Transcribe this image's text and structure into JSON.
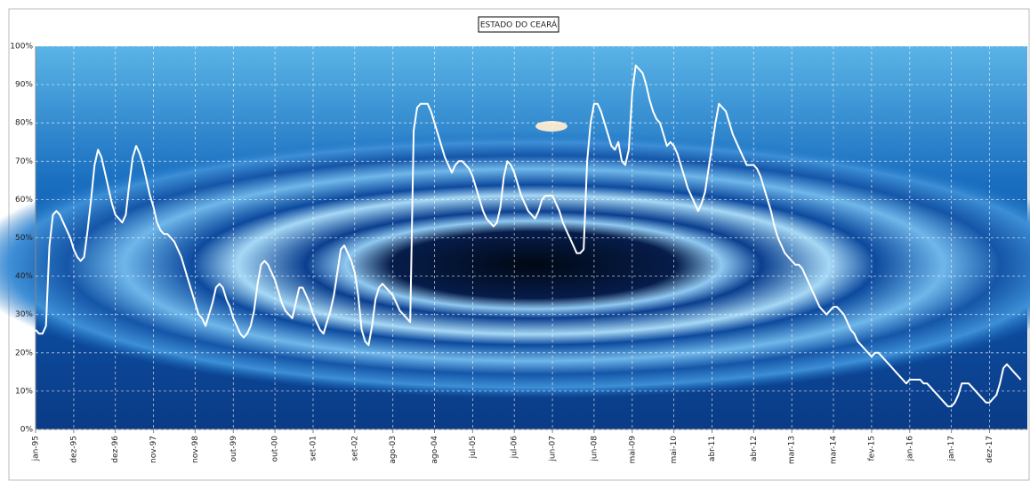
{
  "chart_data": {
    "type": "line",
    "title": "ESTADO DO CEARÁ",
    "categories": [
      "jan-95",
      null,
      null,
      null,
      null,
      null,
      null,
      null,
      null,
      null,
      null,
      "dez-95",
      null,
      null,
      null,
      null,
      null,
      null,
      null,
      null,
      null,
      null,
      null,
      "dez-96",
      null,
      null,
      null,
      null,
      null,
      null,
      null,
      null,
      null,
      null,
      "nov-97",
      null,
      null,
      null,
      null,
      null,
      null,
      null,
      null,
      null,
      null,
      null,
      "nov-98",
      null,
      null,
      null,
      null,
      null,
      null,
      null,
      null,
      null,
      null,
      "out-99",
      null,
      null,
      null,
      null,
      null,
      null,
      null,
      null,
      null,
      null,
      null,
      "out-00",
      null,
      null,
      null,
      null,
      null,
      null,
      null,
      null,
      null,
      null,
      "set-01",
      null,
      null,
      null,
      null,
      null,
      null,
      null,
      null,
      null,
      null,
      null,
      "set-02",
      null,
      null,
      null,
      null,
      null,
      null,
      null,
      null,
      null,
      null,
      "ago-03",
      null,
      null,
      null,
      null,
      null,
      null,
      null,
      null,
      null,
      null,
      null,
      "ago-04",
      null,
      null,
      null,
      null,
      null,
      null,
      null,
      null,
      null,
      null,
      "jul-05",
      null,
      null,
      null,
      null,
      null,
      null,
      null,
      null,
      null,
      null,
      null,
      "jul-06",
      null,
      null,
      null,
      null,
      null,
      null,
      null,
      null,
      null,
      null,
      "jun-07",
      null,
      null,
      null,
      null,
      null,
      null,
      null,
      null,
      null,
      null,
      null,
      "jun-08",
      null,
      null,
      null,
      null,
      null,
      null,
      null,
      null,
      null,
      null,
      "mai-09",
      null,
      null,
      null,
      null,
      null,
      null,
      null,
      null,
      null,
      null,
      null,
      "mai-10",
      null,
      null,
      null,
      null,
      null,
      null,
      null,
      null,
      null,
      null,
      "abr-11",
      null,
      null,
      null,
      null,
      null,
      null,
      null,
      null,
      null,
      null,
      null,
      "abr-12",
      null,
      null,
      null,
      null,
      null,
      null,
      null,
      null,
      null,
      null,
      "mar-13",
      null,
      null,
      null,
      null,
      null,
      null,
      null,
      null,
      null,
      null,
      null,
      "mar-14",
      null,
      null,
      null,
      null,
      null,
      null,
      null,
      null,
      null,
      null,
      "fev-15",
      null,
      null,
      null,
      null,
      null,
      null,
      null,
      null,
      null,
      null,
      "jan-16",
      null,
      null,
      null,
      null,
      null,
      null,
      null,
      null,
      null,
      null,
      null,
      "jan-17",
      null,
      null,
      null,
      null,
      null,
      null,
      null,
      null,
      null,
      null,
      "dez-17",
      null,
      null,
      null,
      null,
      null,
      null,
      null,
      null,
      null
    ],
    "values": [
      26,
      25,
      25,
      27,
      48,
      56,
      57,
      56,
      54,
      52,
      50,
      47,
      45,
      44,
      45,
      52,
      60,
      69,
      73,
      71,
      67,
      63,
      59,
      56,
      55,
      54,
      56,
      64,
      71,
      74,
      72,
      69,
      65,
      61,
      58,
      54,
      52,
      51,
      51,
      50,
      49,
      47,
      45,
      42,
      39,
      36,
      33,
      30,
      29,
      27,
      30,
      33,
      37,
      38,
      37,
      34,
      32,
      29,
      27,
      25,
      24,
      25,
      27,
      31,
      38,
      43,
      44,
      43,
      41,
      39,
      36,
      33,
      31,
      30,
      29,
      33,
      37,
      37,
      35,
      33,
      30,
      28,
      26,
      25,
      28,
      31,
      35,
      41,
      47,
      48,
      46,
      44,
      41,
      35,
      26,
      23,
      22,
      27,
      34,
      37,
      38,
      37,
      36,
      35,
      33,
      31,
      30,
      29,
      28,
      78,
      84,
      85,
      85,
      85,
      83,
      80,
      77,
      74,
      71,
      69,
      67,
      69,
      70,
      70,
      69,
      68,
      66,
      63,
      60,
      57,
      55,
      54,
      53,
      54,
      58,
      66,
      70,
      69,
      67,
      64,
      61,
      59,
      57,
      56,
      55,
      57,
      60,
      61,
      61,
      61,
      59,
      57,
      54,
      52,
      50,
      48,
      46,
      46,
      47,
      70,
      80,
      85,
      85,
      83,
      80,
      77,
      74,
      73,
      75,
      70,
      69,
      73,
      88,
      95,
      94,
      93,
      90,
      86,
      83,
      81,
      80,
      77,
      74,
      75,
      74,
      72,
      69,
      66,
      63,
      61,
      59,
      57,
      59,
      62,
      68,
      74,
      80,
      85,
      84,
      83,
      80,
      77,
      75,
      73,
      71,
      69,
      69,
      69,
      68,
      66,
      63,
      60,
      57,
      53,
      50,
      48,
      46,
      45,
      44,
      43,
      43,
      42,
      40,
      38,
      36,
      34,
      32,
      31,
      30,
      31,
      32,
      32,
      31,
      30,
      28,
      26,
      25,
      23,
      22,
      21,
      20,
      19,
      20,
      20,
      19,
      18,
      17,
      16,
      15,
      14,
      13,
      12,
      13,
      13,
      13,
      13,
      12,
      12,
      11,
      10,
      9,
      8,
      7,
      6,
      6,
      7,
      9,
      12,
      12,
      12,
      11,
      10,
      9,
      8,
      7,
      7,
      8,
      9,
      12,
      16,
      17,
      16,
      15,
      14,
      13
    ],
    "color": "#ffffff",
    "ylim": [
      0,
      100
    ],
    "yticks": [
      {
        "value": 0,
        "label": "0%"
      },
      {
        "value": 10,
        "label": "10%"
      },
      {
        "value": 20,
        "label": "20%"
      },
      {
        "value": 30,
        "label": "30%"
      },
      {
        "value": 40,
        "label": "40%"
      },
      {
        "value": 50,
        "label": "50%"
      },
      {
        "value": 60,
        "label": "60%"
      },
      {
        "value": 70,
        "label": "70%"
      },
      {
        "value": 80,
        "label": "80%"
      },
      {
        "value": 90,
        "label": "90%"
      },
      {
        "value": 100,
        "label": "100%"
      }
    ],
    "grid": true
  }
}
